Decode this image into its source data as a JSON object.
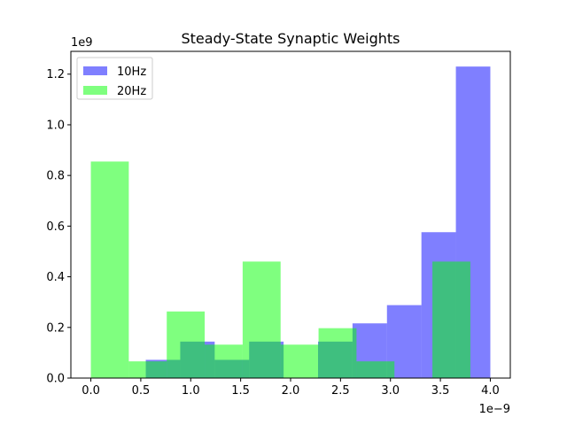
{
  "chart_data": {
    "type": "bar",
    "subtype": "histogram",
    "title": "Steady-State Synaptic Weights",
    "xlabel": "",
    "ylabel": "",
    "x_multiplier_label": "1e−9",
    "y_multiplier_label": "1e9",
    "xlim": [
      -2e-10,
      4.2e-09
    ],
    "ylim": [
      0,
      1290000000.0
    ],
    "x_ticks": [
      0.0,
      5e-10,
      1e-09,
      1.5e-09,
      2e-09,
      2.5e-09,
      3e-09,
      3.5e-09,
      4e-09
    ],
    "x_tick_labels": [
      "0.0",
      "0.5",
      "1.0",
      "1.5",
      "2.0",
      "2.5",
      "3.0",
      "3.5",
      "4.0"
    ],
    "y_ticks": [
      0,
      200000000.0,
      400000000.0,
      600000000.0,
      800000000.0,
      1000000000.0,
      1200000000.0
    ],
    "y_tick_labels": [
      "0.0",
      "0.2",
      "0.4",
      "0.6",
      "0.8",
      "1.0",
      "1.2"
    ],
    "grid": false,
    "legend_position": "top-left",
    "series": [
      {
        "name": "10Hz",
        "color": "#0000ff",
        "alpha": 0.5,
        "bin_edges": [
          5.5e-10,
          8.95e-10,
          1.24e-09,
          1.585e-09,
          1.93e-09,
          2.275e-09,
          2.62e-09,
          2.965e-09,
          3.31e-09,
          3.655e-09,
          4e-09
        ],
        "values": [
          72000000.0,
          144000000.0,
          72000000.0,
          144000000.0,
          0.0,
          144000000.0,
          216000000.0,
          288000000.0,
          576000000.0,
          1230000000.0
        ]
      },
      {
        "name": "20Hz",
        "color": "#00ff00",
        "alpha": 0.5,
        "bin_edges": [
          0.0,
          3.8e-10,
          7.6e-10,
          1.14e-09,
          1.52e-09,
          1.9e-09,
          2.28e-09,
          2.66e-09,
          3.04e-09,
          3.42e-09,
          3.8e-09
        ],
        "values": [
          855000000.0,
          66000000.0,
          263000000.0,
          132000000.0,
          460000000.0,
          132000000.0,
          197000000.0,
          66000000.0,
          0.0,
          460000000.0
        ]
      }
    ]
  }
}
